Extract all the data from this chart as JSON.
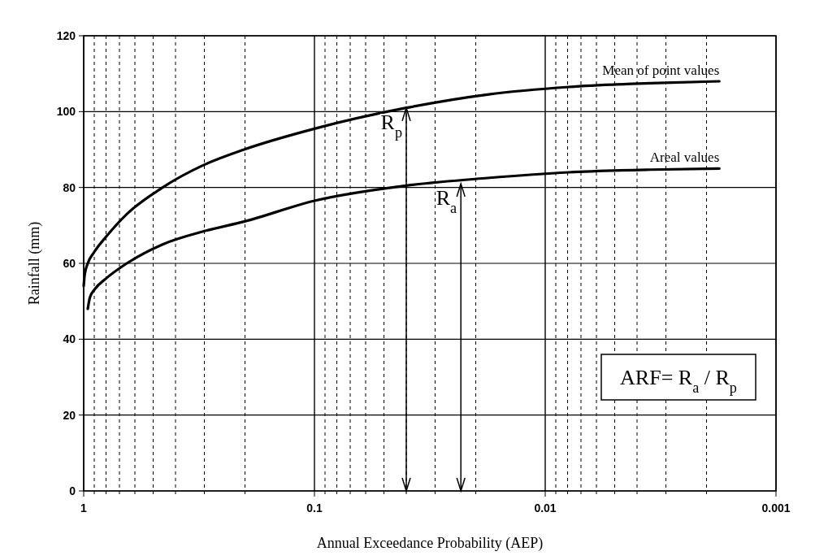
{
  "chart_data": {
    "type": "line",
    "xlabel": "Annual Exceedance Probability (AEP)",
    "ylabel": "Rainfall (mm)",
    "log": "x",
    "grid": true,
    "legend": false,
    "marker": "none",
    "line_style": "solid",
    "xlim": [
      1,
      0.001
    ],
    "xticks": [
      1,
      {
        "value": 0.9,
        "label": null
      },
      {
        "value": 0.8,
        "label": null
      },
      {
        "value": 0.7,
        "label": null
      },
      {
        "value": 0.6,
        "label": null
      },
      {
        "value": 0.5,
        "label": null
      },
      {
        "value": 0.4,
        "label": null
      },
      {
        "value": 0.3,
        "label": null
      },
      {
        "value": 0.2,
        "label": null
      },
      0.1,
      {
        "value": 0.09,
        "label": null
      },
      {
        "value": 0.08,
        "label": null
      },
      {
        "value": 0.07,
        "label": null
      },
      {
        "value": 0.06,
        "label": null
      },
      {
        "value": 0.05,
        "label": null
      },
      {
        "value": 0.04,
        "label": null
      },
      {
        "value": 0.03,
        "label": null
      },
      {
        "value": 0.02,
        "label": null
      },
      0.01,
      {
        "value": 0.009,
        "label": null
      },
      {
        "value": 0.008,
        "label": null
      },
      {
        "value": 0.007,
        "label": null
      },
      {
        "value": 0.006,
        "label": null
      },
      {
        "value": 0.005,
        "label": null
      },
      {
        "value": 0.004,
        "label": null
      },
      {
        "value": 0.003,
        "label": null
      },
      {
        "value": 0.002,
        "label": null
      },
      0.001
    ],
    "ylim": [
      0,
      120
    ],
    "yticks": [
      0,
      20,
      40,
      60,
      80,
      100,
      120
    ],
    "series": [
      {
        "name": "Mean of point values",
        "color": "#000000",
        "x": [
          1,
          0.99,
          0.96,
          0.9,
          0.8,
          0.65,
          0.455,
          0.3,
          0.202,
          0.1,
          0.04,
          0.0178,
          0.0079,
          0.0035,
          0.00176
        ],
        "values": [
          54,
          57,
          60,
          63,
          67,
          73,
          80,
          86,
          90,
          95.5,
          101,
          104.5,
          106.5,
          107.5,
          108
        ]
      },
      {
        "name": "Areal values",
        "color": "#000000",
        "x": [
          0.96,
          0.94,
          0.9,
          0.8,
          0.65,
          0.455,
          0.3,
          0.202,
          0.1,
          0.04,
          0.0178,
          0.0079,
          0.0035,
          0.00176
        ],
        "values": [
          48,
          51,
          53,
          56,
          60,
          65,
          68.5,
          71,
          76.5,
          80.5,
          82.5,
          84,
          84.7,
          85
        ]
      }
    ],
    "annotations": [
      {
        "text": "R$_{p}$",
        "x": 0.04,
        "y": 101
      },
      {
        "text": "R$_{a}$",
        "x": 0.0232,
        "y": 81
      },
      "ARF= R$_{a}$ / R$_{p}$"
    ]
  }
}
